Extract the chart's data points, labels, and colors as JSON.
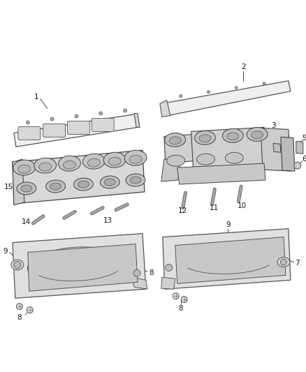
{
  "bg_color": "#ffffff",
  "fig_width": 4.38,
  "fig_height": 5.33,
  "dpi": 100,
  "line_color": "#444444",
  "label_fontsize": 7.5,
  "label_color": "#111111"
}
